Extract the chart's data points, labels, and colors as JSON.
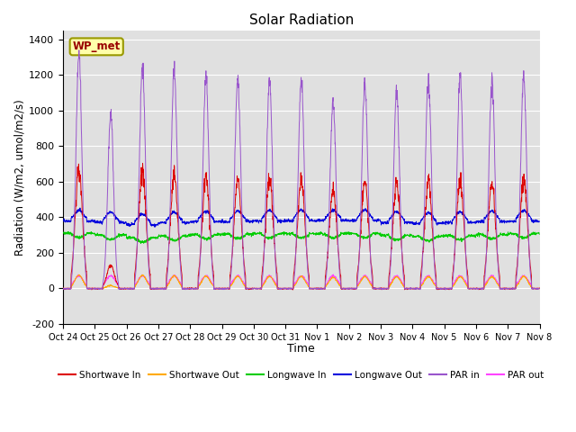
{
  "title": "Solar Radiation",
  "ylabel": "Radiation (W/m2, umol/m2/s)",
  "xlabel": "Time",
  "ylim": [
    -200,
    1450
  ],
  "yticks": [
    -200,
    0,
    200,
    400,
    600,
    800,
    1000,
    1200,
    1400
  ],
  "xtick_labels": [
    "Oct 24",
    "Oct 25",
    "Oct 26",
    "Oct 27",
    "Oct 28",
    "Oct 29",
    "Oct 30",
    "Oct 31",
    "Nov 1",
    "Nov 2",
    "Nov 3",
    "Nov 4",
    "Nov 5",
    "Nov 6",
    "Nov 7",
    "Nov 8"
  ],
  "label_text": "WP_met",
  "bg_color": "#e0e0e0",
  "series": {
    "shortwave_in": {
      "color": "#dd0000",
      "label": "Shortwave In"
    },
    "shortwave_out": {
      "color": "#ffaa00",
      "label": "Shortwave Out"
    },
    "longwave_in": {
      "color": "#00cc00",
      "label": "Longwave In"
    },
    "longwave_out": {
      "color": "#0000dd",
      "label": "Longwave Out"
    },
    "par_in": {
      "color": "#9955cc",
      "label": "PAR in"
    },
    "par_out": {
      "color": "#ff44ff",
      "label": "PAR out"
    }
  },
  "n_days": 15,
  "sw_peaks": [
    670,
    130,
    660,
    640,
    620,
    610,
    610,
    605,
    560,
    600,
    590,
    600,
    600,
    590,
    610
  ],
  "par_peaks": [
    1310,
    980,
    1245,
    1230,
    1185,
    1175,
    1165,
    1165,
    1050,
    1150,
    1110,
    1175,
    1200,
    1170,
    1195
  ],
  "lw_in_base": [
    310,
    300,
    285,
    295,
    302,
    305,
    308,
    308,
    308,
    308,
    298,
    292,
    296,
    302,
    308
  ],
  "lw_out_base": [
    378,
    370,
    358,
    368,
    375,
    375,
    378,
    380,
    382,
    382,
    370,
    365,
    370,
    375,
    378
  ]
}
